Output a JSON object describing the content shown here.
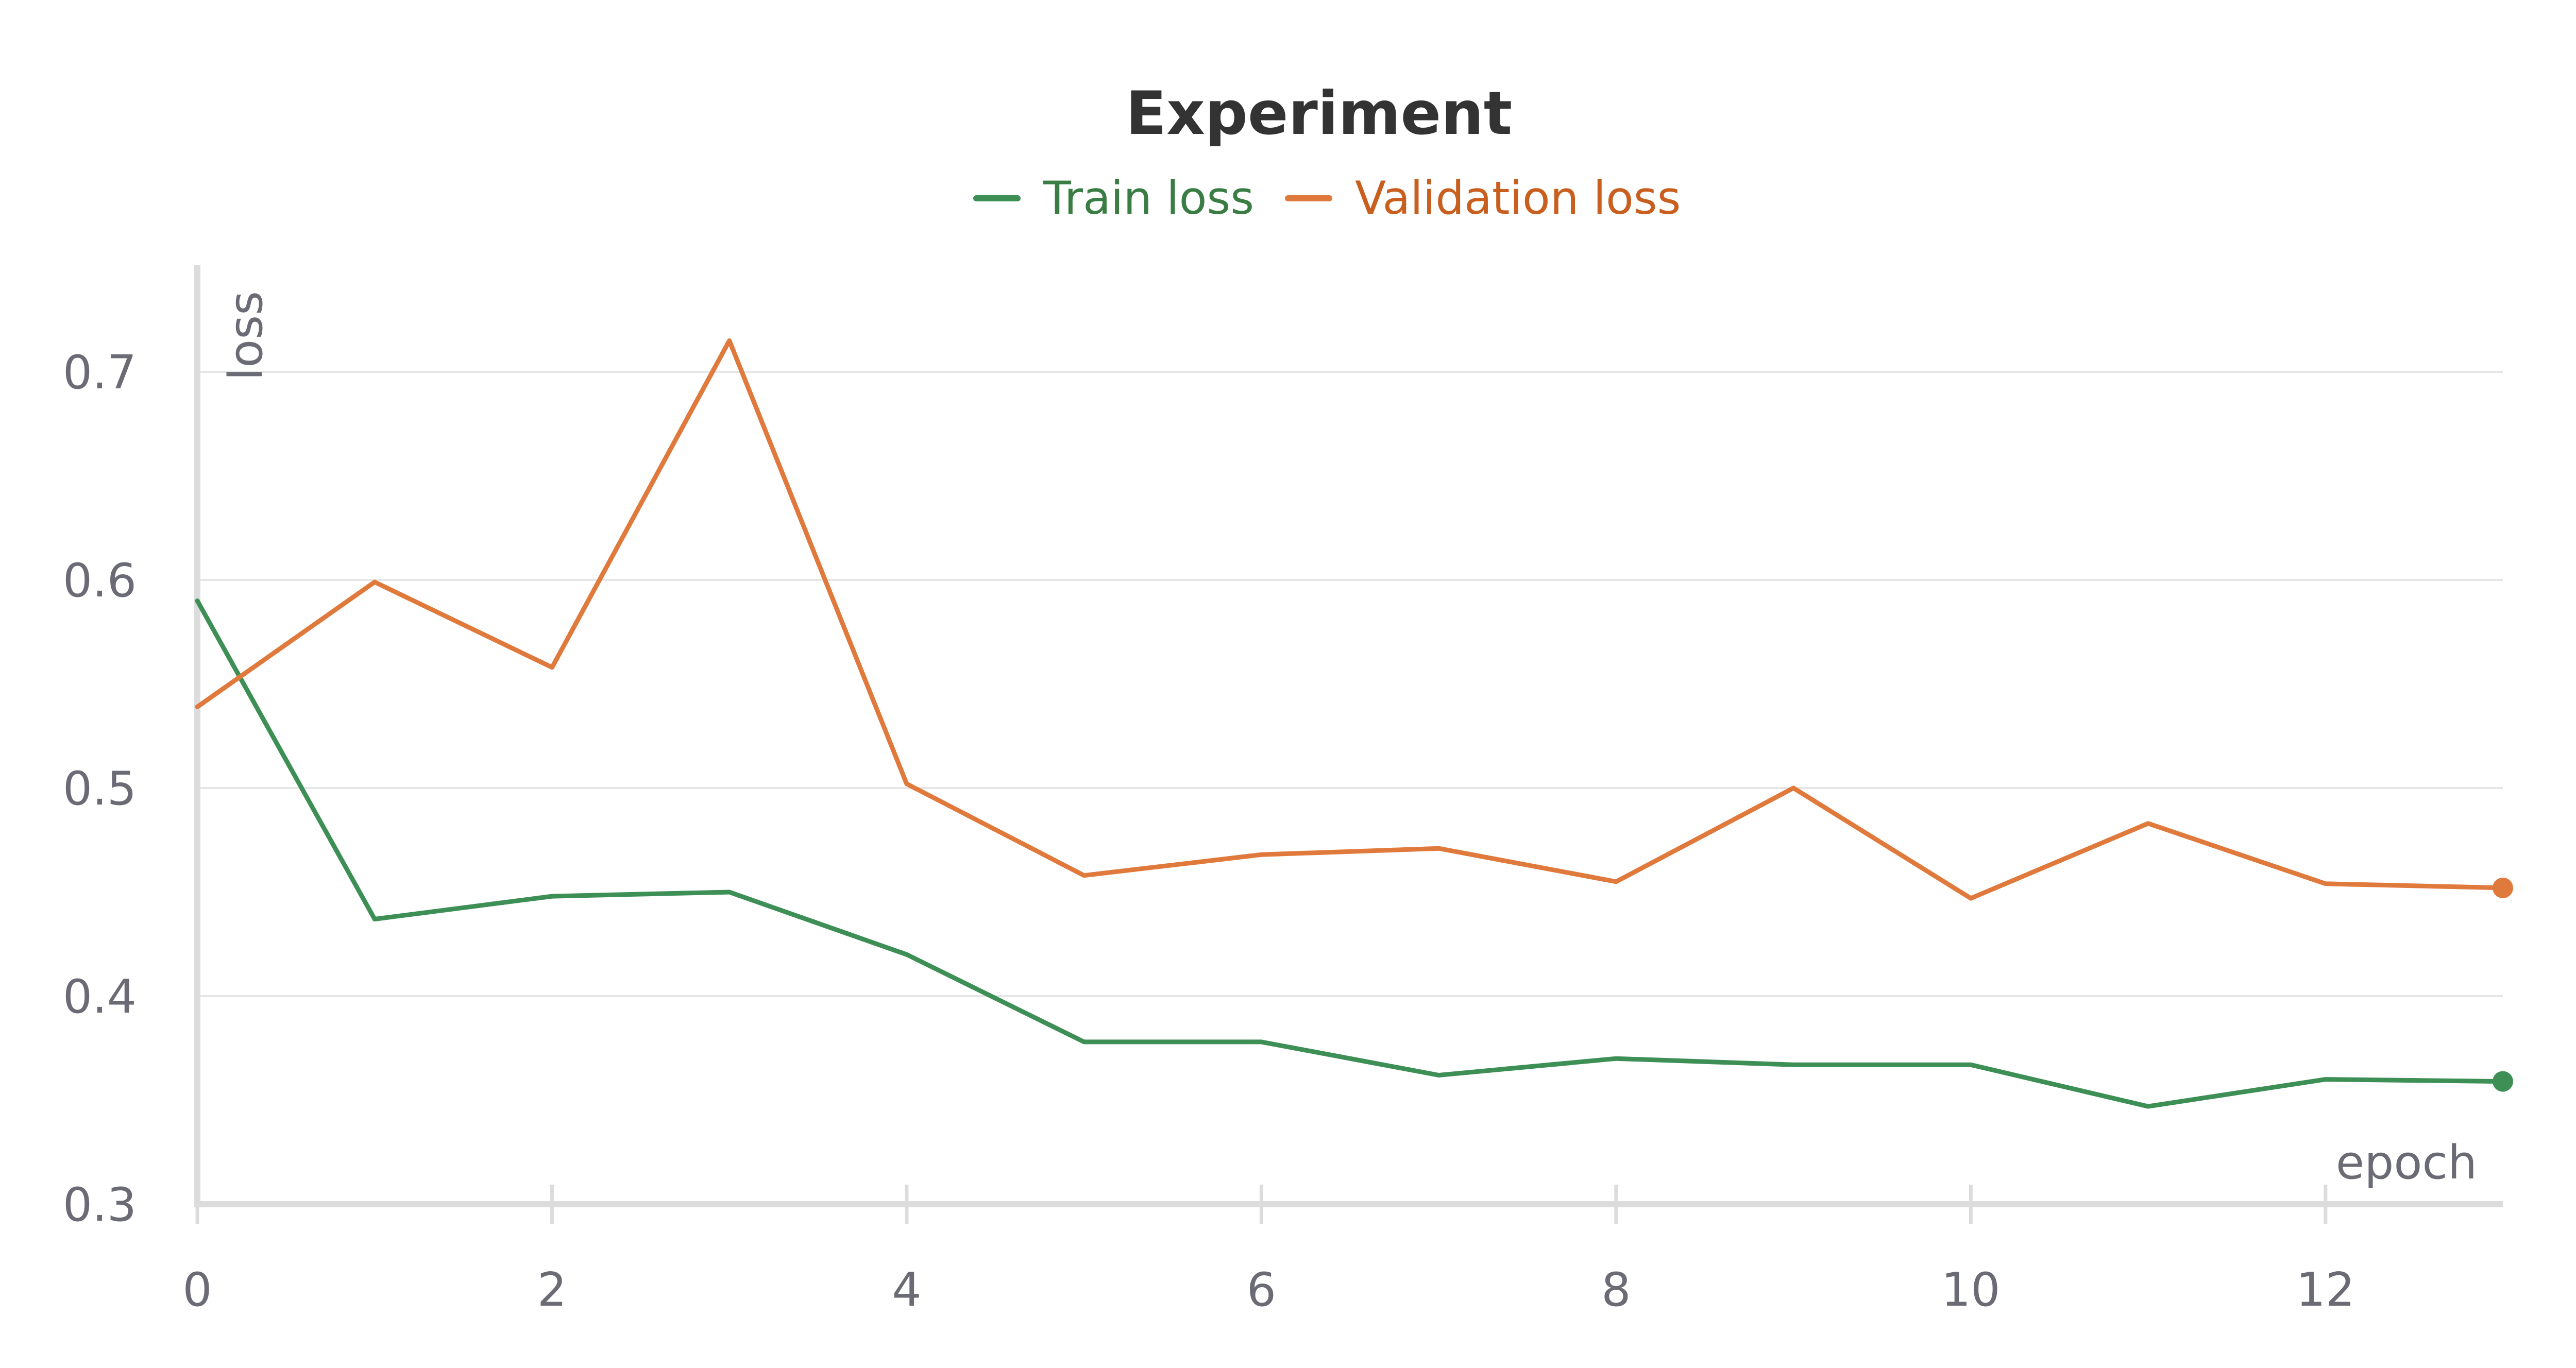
{
  "chart_data": {
    "type": "line",
    "title": "Experiment",
    "xlabel": "epoch",
    "ylabel": "loss",
    "xlim": [
      0,
      13
    ],
    "ylim": [
      0.3,
      0.75
    ],
    "x_ticks": [
      0,
      2,
      4,
      6,
      8,
      10,
      12
    ],
    "y_ticks": [
      0.3,
      0.4,
      0.5,
      0.6,
      0.7
    ],
    "y_tick_labels": [
      "0.3",
      "0.4",
      "0.5",
      "0.6",
      "0.7"
    ],
    "grid": "horizontal",
    "legend_position": "top-center",
    "x": [
      0,
      1,
      2,
      3,
      4,
      5,
      6,
      7,
      8,
      9,
      10,
      11,
      12,
      13
    ],
    "series": [
      {
        "name": "Train loss",
        "color": "#3d8f56",
        "label_color": "#3a7d44",
        "values": [
          0.59,
          0.437,
          0.448,
          0.45,
          0.42,
          0.378,
          0.378,
          0.362,
          0.37,
          0.367,
          0.367,
          0.347,
          0.36,
          0.359
        ]
      },
      {
        "name": "Validation loss",
        "color": "#e07a3c",
        "label_color": "#c95f1f",
        "values": [
          0.539,
          0.599,
          0.558,
          0.715,
          0.502,
          0.458,
          0.468,
          0.471,
          0.455,
          0.5,
          0.447,
          0.483,
          0.454,
          0.452
        ]
      }
    ]
  }
}
